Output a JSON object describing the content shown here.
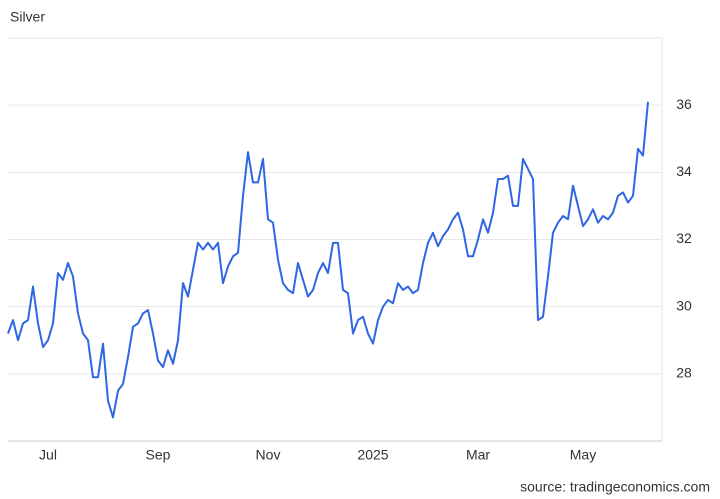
{
  "chart_data": {
    "type": "line",
    "title": "Silver",
    "source": "source: tradingeconomics.com",
    "categories": [
      null,
      null,
      null,
      null,
      null,
      null,
      null,
      null,
      "Jul",
      null,
      null,
      null,
      null,
      null,
      null,
      null,
      null,
      null,
      null,
      null,
      null,
      null,
      null,
      null,
      null,
      null,
      null,
      null,
      null,
      null,
      "Sep",
      null,
      null,
      null,
      null,
      null,
      null,
      null,
      null,
      null,
      null,
      null,
      null,
      null,
      null,
      null,
      null,
      null,
      null,
      null,
      null,
      null,
      "Nov",
      null,
      null,
      null,
      null,
      null,
      null,
      null,
      null,
      null,
      null,
      null,
      null,
      null,
      null,
      null,
      null,
      null,
      null,
      null,
      null,
      "2025",
      null,
      null,
      null,
      null,
      null,
      null,
      null,
      null,
      null,
      null,
      null,
      null,
      null,
      null,
      null,
      null,
      null,
      null,
      null,
      null,
      "Mar",
      null,
      null,
      null,
      null,
      null,
      null,
      null,
      null,
      null,
      null,
      null,
      null,
      null,
      null,
      null,
      null,
      null,
      null,
      null,
      null,
      "May",
      null,
      null,
      null,
      null,
      null,
      null,
      null,
      null,
      null,
      null,
      null,
      null,
      null
    ],
    "series": [
      {
        "name": "Silver",
        "color": "#2f66e3",
        "values": [
          29.2,
          29.6,
          29.0,
          29.5,
          29.6,
          30.6,
          29.5,
          28.8,
          29.0,
          29.5,
          31.0,
          30.8,
          31.3,
          30.9,
          29.8,
          29.2,
          29.0,
          27.9,
          27.9,
          28.9,
          27.2,
          26.7,
          27.5,
          27.7,
          28.5,
          29.4,
          29.5,
          29.8,
          29.9,
          29.2,
          28.4,
          28.2,
          28.7,
          28.3,
          29.0,
          30.7,
          30.3,
          31.1,
          31.9,
          31.7,
          31.9,
          31.7,
          31.9,
          30.7,
          31.2,
          31.5,
          31.6,
          33.3,
          34.6,
          33.7,
          33.7,
          34.4,
          32.6,
          32.5,
          31.4,
          30.7,
          30.5,
          30.4,
          31.3,
          30.8,
          30.3,
          30.5,
          31.0,
          31.3,
          31.0,
          31.9,
          31.9,
          30.5,
          30.4,
          29.2,
          29.6,
          29.7,
          29.2,
          28.9,
          29.6,
          30.0,
          30.2,
          30.1,
          30.7,
          30.5,
          30.6,
          30.4,
          30.5,
          31.3,
          31.9,
          32.2,
          31.8,
          32.1,
          32.3,
          32.6,
          32.8,
          32.3,
          31.5,
          31.5,
          32.0,
          32.6,
          32.2,
          32.8,
          33.8,
          33.8,
          33.9,
          33.0,
          33.0,
          34.4,
          34.1,
          33.8,
          29.6,
          29.7,
          30.9,
          32.2,
          32.5,
          32.7,
          32.6,
          33.6,
          33.0,
          32.4,
          32.6,
          32.9,
          32.5,
          32.7,
          32.6,
          32.8,
          33.3,
          33.4,
          33.1,
          33.3,
          34.7,
          34.5,
          36.1
        ]
      }
    ],
    "ylim": [
      26,
      38
    ],
    "yticks": [
      28,
      30,
      32,
      34,
      36
    ],
    "grid": true
  }
}
